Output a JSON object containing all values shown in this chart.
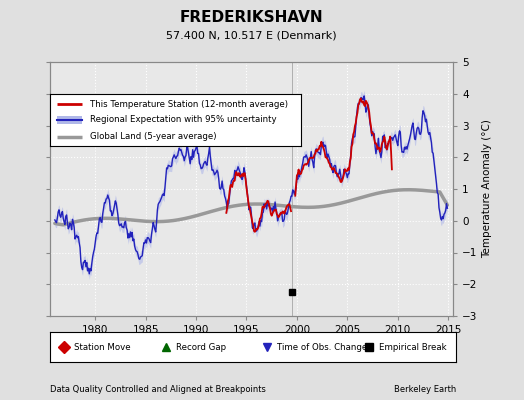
{
  "title": "FREDERIKSHAVN",
  "subtitle": "57.400 N, 10.517 E (Denmark)",
  "ylabel": "Temperature Anomaly (°C)",
  "xlabel_left": "Data Quality Controlled and Aligned at Breakpoints",
  "xlabel_right": "Berkeley Earth",
  "ylim": [
    -3,
    5
  ],
  "xlim": [
    1975.5,
    2015.5
  ],
  "xticks": [
    1980,
    1985,
    1990,
    1995,
    2000,
    2005,
    2010,
    2015
  ],
  "yticks": [
    -3,
    -2,
    -1,
    0,
    1,
    2,
    3,
    4,
    5
  ],
  "bg_color": "#e0e0e0",
  "plot_bg_color": "#e8e8e8",
  "legend1_labels": [
    "This Temperature Station (12-month average)",
    "Regional Expectation with 95% uncertainty",
    "Global Land (5-year average)"
  ],
  "legend2_labels": [
    "Station Move",
    "Record Gap",
    "Time of Obs. Change",
    "Empirical Break"
  ],
  "station_color": "#cc0000",
  "regional_color": "#2222bb",
  "regional_fill_color": "#b0b8e8",
  "global_color": "#999999",
  "global_linewidth": 2.5,
  "regional_linewidth": 1.0,
  "station_linewidth": 1.3,
  "marker_empirical_break_x": 1999.5,
  "marker_empirical_break_y": -2.25,
  "grid_color": "#ffffff",
  "spine_color": "#888888"
}
